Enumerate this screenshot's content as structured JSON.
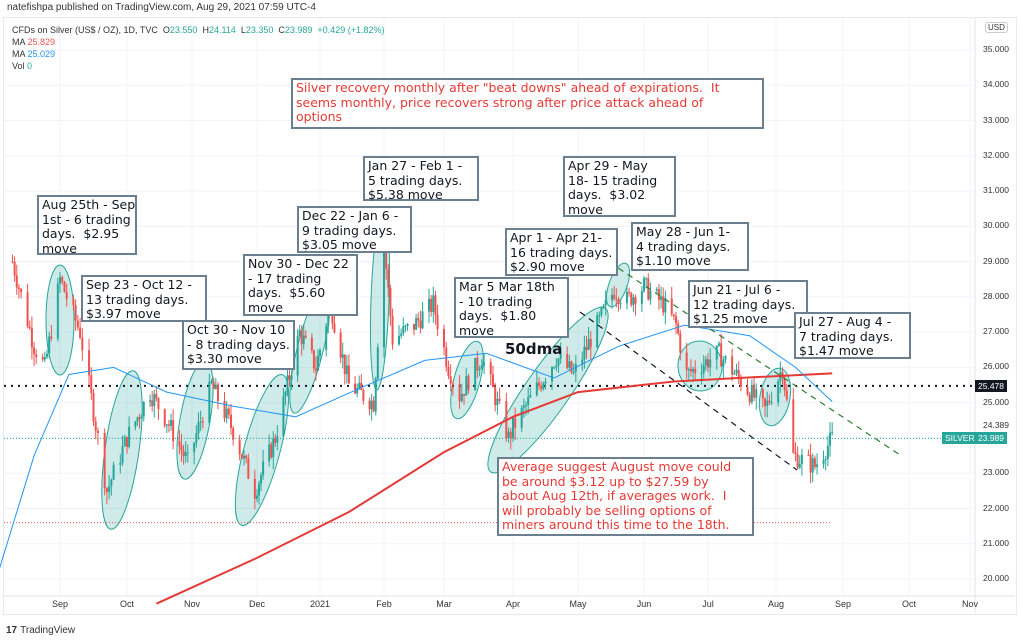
{
  "header": {
    "published": "natefishpa published on TradingView.com, Aug 29, 2021 07:59 UTC-4"
  },
  "legend": {
    "symbol": "CFDs on Silver (US$ / OZ), 1D, TVC",
    "o_label": "O",
    "o": "23.550",
    "h_label": "H",
    "h": "24.114",
    "l_label": "L",
    "l": "23.350",
    "c_label": "C",
    "c": "23.989",
    "chg": "+0.429 (+1.82%)",
    "ma1_label": "MA",
    "ma1": "25.829",
    "ma2_label": "MA",
    "ma2": "25.029",
    "vol_label": "Vol",
    "vol": "0"
  },
  "price_axis": {
    "currency": "USD",
    "ticks": [
      "35.000",
      "34.000",
      "33.000",
      "32.000",
      "31.000",
      "30.000",
      "29.000",
      "28.000",
      "27.000",
      "26.000",
      "25.000",
      "23.000",
      "22.000",
      "21.000",
      "20.000"
    ],
    "hline_value": "25.478",
    "high_marker": "24.389",
    "last_symbol": "SILVER",
    "last_value": "23.989"
  },
  "time_axis": {
    "months": [
      "Sep",
      "Oct",
      "Nov",
      "Dec",
      "2021",
      "Feb",
      "Mar",
      "Apr",
      "May",
      "Jun",
      "Jul",
      "Aug",
      "Sep",
      "Oct",
      "Nov"
    ]
  },
  "annotations": {
    "top": "Silver recovery monthly after \"beat downs\" ahead of expirations.  It\nseems monthly, price recovers strong after price attack ahead of\noptions",
    "bottom": "Average suggest August move could\nbe around $3.12 up to $27.59 by\nabout Aug 12th, if averages work.  I\nwill probably be selling options of\nminers around this time to the 18th.",
    "ma50": "50dma",
    "moves": [
      "Aug 25th - Sep\n1st - 6 trading\ndays.  $2.95\nmove",
      "Sep 23 - Oct 12 -\n13 trading days.\n$3.97 move",
      "Oct 30 - Nov 10\n- 8 trading days.\n$3.30 move",
      "Nov 30 - Dec 22\n- 17 trading\ndays.  $5.60\nmove",
      "Dec 22 - Jan 6 -\n9 trading days.\n$3.05 move",
      "Jan 27 - Feb 1 -\n5 trading days.\n$5.38 move",
      "Apr 29 - May\n18- 15 trading\ndays.  $3.02\nmove",
      "Apr 1 - Apr 21-\n16 trading days.\n$2.90 move",
      "Mar 5 Mar 18th\n- 10 trading\ndays.  $1.80\nmove",
      "May 28 - Jun 1-\n4 trading days.\n$1.10 move",
      "Jun 21 - Jul 6 -\n12 trading days.\n$1.25 move",
      "Jul 27 - Aug 4 -\n7 trading days.\n$1.47 move"
    ]
  },
  "colors": {
    "up": "#26a69a",
    "down": "#ef5350",
    "ma200": "#e53935",
    "ma50": "#2196f3",
    "highlight": "#26a69a"
  },
  "chart_data": {
    "type": "candlestick",
    "title": "CFDs on Silver (US$ / OZ), 1D, TVC",
    "ylim": [
      19.3,
      36.2
    ],
    "closes_keypoints": [
      [
        "2020-08-10",
        29.0
      ],
      [
        "2020-08-20",
        26.6
      ],
      [
        "2020-08-25",
        26.0
      ],
      [
        "2020-09-01",
        28.5
      ],
      [
        "2020-09-10",
        27.0
      ],
      [
        "2020-09-22",
        22.5
      ],
      [
        "2020-10-01",
        24.0
      ],
      [
        "2020-10-12",
        25.3
      ],
      [
        "2020-10-20",
        24.5
      ],
      [
        "2020-10-30",
        23.3
      ],
      [
        "2020-11-10",
        25.5
      ],
      [
        "2020-11-20",
        24.2
      ],
      [
        "2020-11-30",
        22.5
      ],
      [
        "2020-12-10",
        24.0
      ],
      [
        "2020-12-22",
        27.0
      ],
      [
        "2020-12-30",
        26.0
      ],
      [
        "2021-01-06",
        27.8
      ],
      [
        "2021-01-15",
        25.5
      ],
      [
        "2021-01-27",
        25.0
      ],
      [
        "2021-02-01",
        29.5
      ],
      [
        "2021-02-05",
        26.8
      ],
      [
        "2021-02-15",
        27.2
      ],
      [
        "2021-02-24",
        27.8
      ],
      [
        "2021-03-03",
        26.0
      ],
      [
        "2021-03-08",
        25.2
      ],
      [
        "2021-03-18",
        26.3
      ],
      [
        "2021-03-30",
        24.0
      ],
      [
        "2021-04-01",
        24.3
      ],
      [
        "2021-04-21",
        26.3
      ],
      [
        "2021-04-29",
        25.8
      ],
      [
        "2021-05-18",
        28.2
      ],
      [
        "2021-05-24",
        27.9
      ],
      [
        "2021-06-01",
        28.3
      ],
      [
        "2021-06-10",
        27.8
      ],
      [
        "2021-06-16",
        27.2
      ],
      [
        "2021-06-21",
        25.8
      ],
      [
        "2021-07-06",
        26.4
      ],
      [
        "2021-07-20",
        25.3
      ],
      [
        "2021-07-27",
        24.8
      ],
      [
        "2021-08-04",
        26.0
      ],
      [
        "2021-08-09",
        23.5
      ],
      [
        "2021-08-19",
        23.2
      ],
      [
        "2021-08-27",
        23.99
      ]
    ],
    "ma200_keypoints": [
      [
        "2020-10-15",
        19.3
      ],
      [
        "2020-12-01",
        20.6
      ],
      [
        "2021-01-15",
        21.9
      ],
      [
        "2021-03-01",
        23.6
      ],
      [
        "2021-04-01",
        24.6
      ],
      [
        "2021-05-01",
        25.3
      ],
      [
        "2021-06-15",
        25.6
      ],
      [
        "2021-07-15",
        25.7
      ],
      [
        "2021-08-27",
        25.83
      ]
    ],
    "ma50_keypoints": [
      [
        "2020-08-01",
        19.7
      ],
      [
        "2020-08-20",
        23.5
      ],
      [
        "2020-09-05",
        25.8
      ],
      [
        "2020-09-25",
        26.0
      ],
      [
        "2020-10-20",
        25.3
      ],
      [
        "2020-11-20",
        24.9
      ],
      [
        "2020-12-20",
        24.6
      ],
      [
        "2021-01-20",
        25.4
      ],
      [
        "2021-02-20",
        26.2
      ],
      [
        "2021-03-20",
        26.4
      ],
      [
        "2021-04-20",
        25.7
      ],
      [
        "2021-05-20",
        26.6
      ],
      [
        "2021-06-20",
        27.2
      ],
      [
        "2021-07-20",
        26.9
      ],
      [
        "2021-08-10",
        26.0
      ],
      [
        "2021-08-27",
        25.03
      ]
    ],
    "horizontal_lines": [
      25.478,
      21.6
    ]
  }
}
